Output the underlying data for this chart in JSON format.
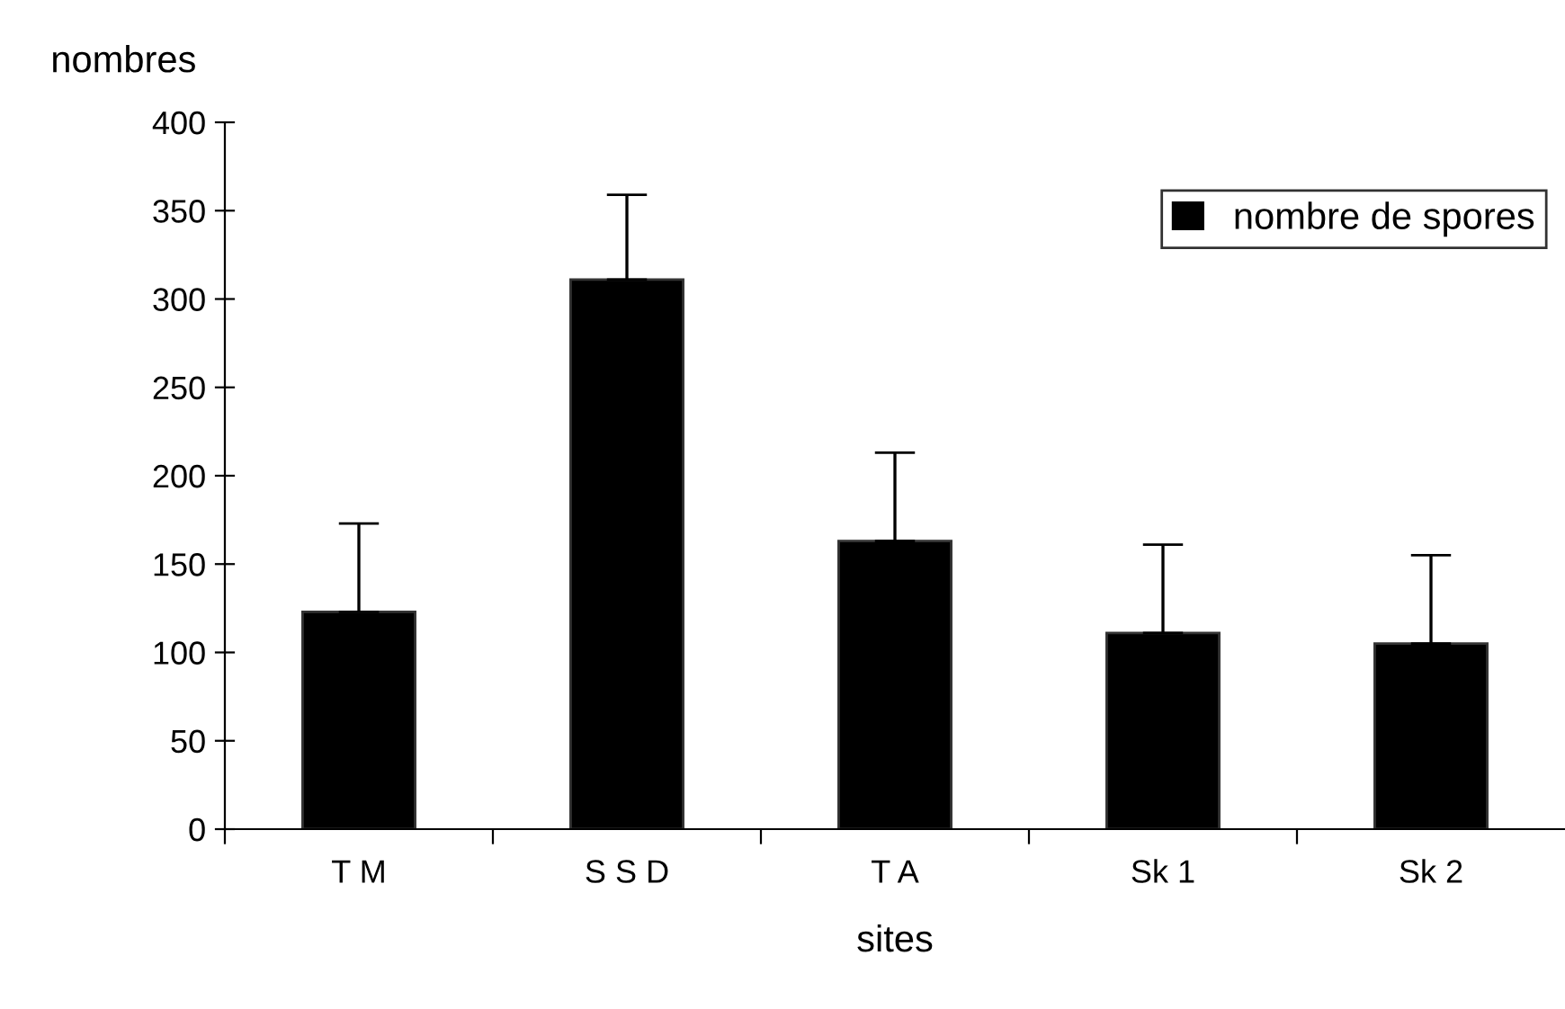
{
  "chart_data": {
    "type": "bar",
    "xlabel": "sites",
    "ylabel": "nombres",
    "categories": [
      "T M",
      "S S D",
      "T A",
      "Sk 1",
      "Sk 2"
    ],
    "series": [
      {
        "name": "nombre de spores",
        "color": "#000000",
        "values": [
          123,
          311,
          163,
          111,
          105
        ],
        "errors": [
          [
            123,
            173
          ],
          [
            311,
            359
          ],
          [
            163,
            213
          ],
          [
            111,
            161
          ],
          [
            105,
            155
          ]
        ]
      }
    ],
    "ylim": [
      0,
      400
    ],
    "yticks": [
      0,
      50,
      100,
      150,
      200,
      250,
      300,
      350,
      400
    ],
    "grid": false,
    "legend": "top right"
  }
}
